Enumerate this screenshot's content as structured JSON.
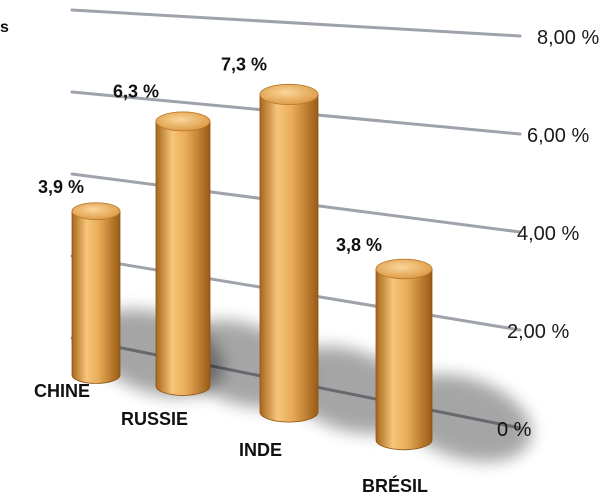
{
  "chart_data": {
    "type": "bar",
    "categories": [
      "CHINE",
      "RUSSIE",
      "INDE",
      "BRÉSIL"
    ],
    "values": [
      3.9,
      6.3,
      7.3,
      3.8
    ],
    "data_labels": [
      "3,9 %",
      "6,3 %",
      "7,3 %",
      "3,8 %"
    ],
    "y_ticks": [
      "0 %",
      "2,00 %",
      "4,00 %",
      "6,00 %",
      "8,00 %"
    ],
    "ylim": [
      0,
      8
    ],
    "grid": true,
    "style": "3d-cylinders",
    "colors": {
      "bar_light": "#f6c57a",
      "bar_mid": "#e3a24a",
      "bar_dark": "#a8661c",
      "grid": "#9ea3ab"
    }
  },
  "edge_fragment": "s"
}
